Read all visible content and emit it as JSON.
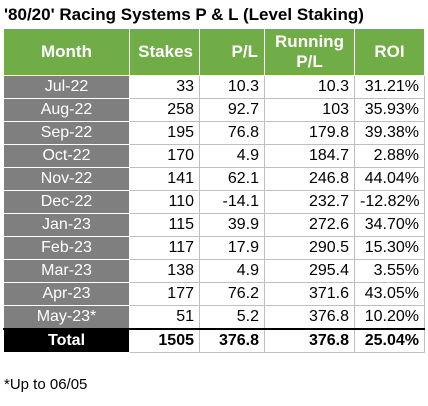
{
  "title": "'80/20' Racing Systems P & L (Level Staking)",
  "headers": {
    "month": "Month",
    "stakes": "Stakes",
    "pl": "P/L",
    "running_line1": "Running",
    "running_line2": "P/L",
    "roi": "ROI"
  },
  "rows": [
    {
      "month": "Jul-22",
      "stakes": "33",
      "pl": "10.3",
      "running": "10.3",
      "roi": "31.21%"
    },
    {
      "month": "Aug-22",
      "stakes": "258",
      "pl": "92.7",
      "running": "103",
      "roi": "35.93%"
    },
    {
      "month": "Sep-22",
      "stakes": "195",
      "pl": "76.8",
      "running": "179.8",
      "roi": "39.38%"
    },
    {
      "month": "Oct-22",
      "stakes": "170",
      "pl": "4.9",
      "running": "184.7",
      "roi": "2.88%"
    },
    {
      "month": "Nov-22",
      "stakes": "141",
      "pl": "62.1",
      "running": "246.8",
      "roi": "44.04%"
    },
    {
      "month": "Dec-22",
      "stakes": "110",
      "pl": "-14.1",
      "running": "232.7",
      "roi": "-12.82%"
    },
    {
      "month": "Jan-23",
      "stakes": "115",
      "pl": "39.9",
      "running": "272.6",
      "roi": "34.70%"
    },
    {
      "month": "Feb-23",
      "stakes": "117",
      "pl": "17.9",
      "running": "290.5",
      "roi": "15.30%"
    },
    {
      "month": "Mar-23",
      "stakes": "138",
      "pl": "4.9",
      "running": "295.4",
      "roi": "3.55%"
    },
    {
      "month": "Apr-23",
      "stakes": "177",
      "pl": "76.2",
      "running": "371.6",
      "roi": "43.05%"
    },
    {
      "month": "May-23*",
      "stakes": "51",
      "pl": "5.2",
      "running": "376.8",
      "roi": "10.20%"
    }
  ],
  "total": {
    "month": "Total",
    "stakes": "1505",
    "pl": "376.8",
    "running": "376.8",
    "roi": "25.04%"
  },
  "footnote": "*Up to 06/05",
  "colors": {
    "header_bg": "#70ad47",
    "month_bg": "#7f7f7f",
    "total_month_bg": "#000000"
  }
}
